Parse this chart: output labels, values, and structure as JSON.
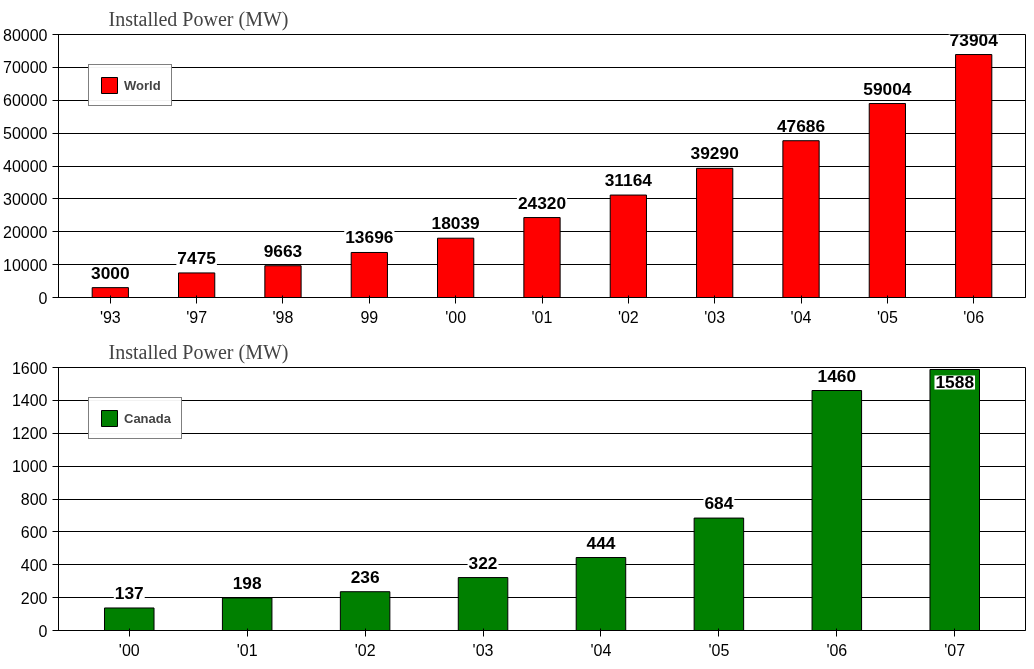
{
  "chart_data": [
    {
      "type": "bar",
      "title": "Installed Power (MW)",
      "categories": [
        "'93",
        "'97",
        "'98",
        "99",
        "'00",
        "'01",
        "'02",
        "'03",
        "'04",
        "'05",
        "'06"
      ],
      "series": [
        {
          "name": "World",
          "color": "#ff0000",
          "values": [
            3000,
            7475,
            9663,
            13696,
            18039,
            24320,
            31164,
            39290,
            47686,
            59004,
            73904
          ]
        }
      ],
      "ylim": [
        0,
        80000
      ],
      "yticks": [
        0,
        10000,
        20000,
        30000,
        40000,
        50000,
        60000,
        70000,
        80000
      ],
      "grid": "y",
      "legend": "top left",
      "data_labels": true
    },
    {
      "type": "bar",
      "title": "Installed Power (MW)",
      "categories": [
        "'00",
        "'01",
        "'02",
        "'03",
        "'04",
        "'05",
        "'06",
        "'07"
      ],
      "series": [
        {
          "name": "Canada",
          "color": "#008000",
          "values": [
            137,
            198,
            236,
            322,
            444,
            684,
            1460,
            1588
          ]
        }
      ],
      "ylim": [
        0,
        1600
      ],
      "yticks": [
        0,
        200,
        400,
        600,
        800,
        1000,
        1200,
        1400,
        1600
      ],
      "grid": "y",
      "legend": "top left",
      "data_labels": true
    }
  ]
}
